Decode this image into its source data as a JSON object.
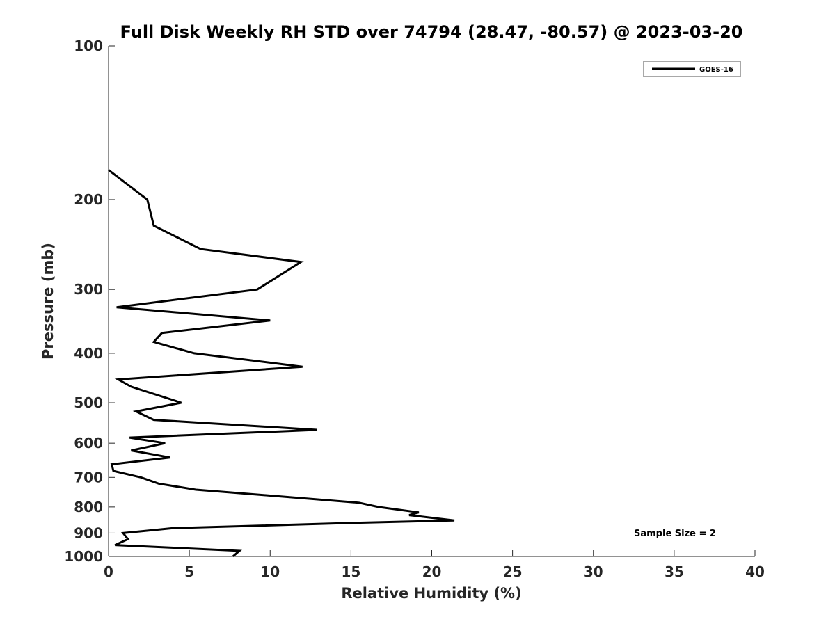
{
  "chart_data": {
    "type": "line",
    "title": "Full Disk Weekly RH STD over 74794 (28.47, -80.57) @ 2023-03-20",
    "xlabel": "Relative Humidity (%)",
    "ylabel": "Pressure (mb)",
    "xlim": [
      0,
      40
    ],
    "ylim": [
      100,
      1000
    ],
    "y_scale": "log",
    "y_reversed": true,
    "grid": false,
    "x_ticks": [
      "0",
      "5",
      "10",
      "15",
      "20",
      "25",
      "30",
      "35",
      "40"
    ],
    "y_ticks": [
      "100",
      "200",
      "300",
      "400",
      "500",
      "600",
      "700",
      "800",
      "900",
      "1000"
    ],
    "legend": {
      "position": "top-right",
      "entries": [
        "GOES-16"
      ]
    },
    "annotation": "Sample Size = 2",
    "series": [
      {
        "name": "GOES-16",
        "color": "#000000",
        "points": [
          {
            "rh": 0.0,
            "p": 175
          },
          {
            "rh": 2.4,
            "p": 200
          },
          {
            "rh": 2.8,
            "p": 225
          },
          {
            "rh": 5.7,
            "p": 250
          },
          {
            "rh": 11.9,
            "p": 265
          },
          {
            "rh": 9.2,
            "p": 300
          },
          {
            "rh": 0.5,
            "p": 325
          },
          {
            "rh": 10.0,
            "p": 345
          },
          {
            "rh": 3.3,
            "p": 365
          },
          {
            "rh": 2.8,
            "p": 380
          },
          {
            "rh": 5.3,
            "p": 400
          },
          {
            "rh": 12.0,
            "p": 425
          },
          {
            "rh": 0.6,
            "p": 450
          },
          {
            "rh": 1.4,
            "p": 465
          },
          {
            "rh": 4.5,
            "p": 500
          },
          {
            "rh": 1.7,
            "p": 520
          },
          {
            "rh": 2.8,
            "p": 540
          },
          {
            "rh": 12.9,
            "p": 565
          },
          {
            "rh": 1.3,
            "p": 585
          },
          {
            "rh": 3.5,
            "p": 600
          },
          {
            "rh": 1.4,
            "p": 620
          },
          {
            "rh": 3.8,
            "p": 640
          },
          {
            "rh": 0.2,
            "p": 660
          },
          {
            "rh": 0.3,
            "p": 680
          },
          {
            "rh": 2.0,
            "p": 700
          },
          {
            "rh": 3.1,
            "p": 720
          },
          {
            "rh": 5.4,
            "p": 740
          },
          {
            "rh": 10.0,
            "p": 760
          },
          {
            "rh": 15.5,
            "p": 785
          },
          {
            "rh": 16.7,
            "p": 800
          },
          {
            "rh": 19.2,
            "p": 820
          },
          {
            "rh": 18.6,
            "p": 830
          },
          {
            "rh": 21.4,
            "p": 850
          },
          {
            "rh": 15.0,
            "p": 860
          },
          {
            "rh": 4.0,
            "p": 880
          },
          {
            "rh": 0.9,
            "p": 900
          },
          {
            "rh": 1.2,
            "p": 925
          },
          {
            "rh": 0.4,
            "p": 950
          },
          {
            "rh": 8.1,
            "p": 975
          },
          {
            "rh": 7.7,
            "p": 1000
          }
        ]
      }
    ]
  }
}
